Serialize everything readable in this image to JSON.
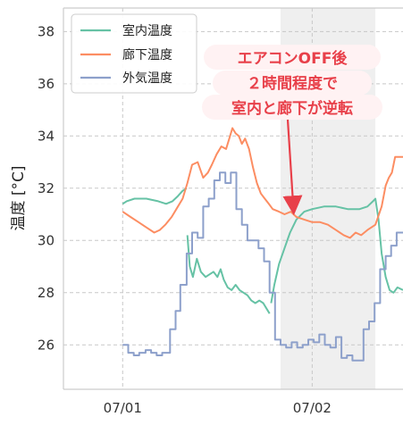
{
  "chart_data": {
    "type": "line",
    "ylabel": "温度 [°C]",
    "ylim": [
      24.3,
      38.9
    ],
    "yticks": [
      26,
      28,
      30,
      32,
      34,
      36,
      38
    ],
    "x_ticks": [
      {
        "label": "07/01",
        "value": 0
      },
      {
        "label": "07/02",
        "value": 24
      }
    ],
    "xlim": [
      -7.5,
      35.5
    ],
    "grid": true,
    "legend_position": "top-left",
    "shaded_region": {
      "x_start": 20,
      "x_end": 32,
      "color": "#efefef"
    },
    "annotation": {
      "lines": [
        "エアコンOFF後",
        "２時間程度で",
        "室内と廊下が逆転"
      ],
      "color": "#e8404a",
      "arrow_target": {
        "x": 21.6,
        "y": 31.2
      }
    },
    "series": [
      {
        "name": "室内温度",
        "color": "#66c2a5",
        "segments": [
          [
            [
              0,
              31.4
            ],
            [
              0.5,
              31.5
            ],
            [
              1.5,
              31.6
            ],
            [
              3,
              31.6
            ],
            [
              4.5,
              31.5
            ],
            [
              5.5,
              31.4
            ],
            [
              6.3,
              31.5
            ],
            [
              7,
              31.7
            ],
            [
              7.6,
              31.9
            ],
            [
              8.1,
              32.0
            ]
          ],
          [
            [
              8.2,
              30.2
            ],
            [
              8.5,
              29.0
            ],
            [
              8.9,
              28.6
            ],
            [
              9.4,
              29.3
            ],
            [
              9.9,
              28.8
            ],
            [
              10.5,
              28.6
            ],
            [
              11,
              28.7
            ],
            [
              11.5,
              28.8
            ],
            [
              12,
              28.6
            ],
            [
              12.4,
              28.9
            ],
            [
              12.8,
              28.5
            ],
            [
              13.3,
              28.2
            ],
            [
              13.8,
              28.1
            ],
            [
              14.3,
              28.3
            ],
            [
              14.8,
              28.1
            ],
            [
              15.3,
              28.0
            ],
            [
              15.8,
              27.9
            ],
            [
              16.3,
              27.7
            ],
            [
              16.8,
              27.6
            ],
            [
              17.3,
              27.7
            ],
            [
              17.8,
              27.6
            ],
            [
              18.2,
              27.4
            ],
            [
              18.6,
              27.2
            ]
          ],
          [
            [
              18.8,
              27.6
            ],
            [
              19.2,
              28.3
            ],
            [
              19.8,
              29.1
            ],
            [
              20.5,
              29.7
            ],
            [
              21.2,
              30.3
            ],
            [
              22,
              30.8
            ],
            [
              23,
              31.1
            ],
            [
              24,
              31.2
            ],
            [
              25.5,
              31.3
            ],
            [
              27,
              31.3
            ],
            [
              28.5,
              31.2
            ],
            [
              30,
              31.2
            ],
            [
              31,
              31.3
            ],
            [
              31.7,
              31.5
            ],
            [
              32,
              31.6
            ],
            [
              32.4,
              30.8
            ],
            [
              32.8,
              29.5
            ],
            [
              33.3,
              28.6
            ],
            [
              33.8,
              28.1
            ],
            [
              34.3,
              28.0
            ],
            [
              34.8,
              28.2
            ],
            [
              35.5,
              28.1
            ]
          ]
        ]
      },
      {
        "name": "廊下温度",
        "color": "#fc8d62",
        "segments": [
          [
            [
              0,
              31.1
            ],
            [
              1,
              30.9
            ],
            [
              2,
              30.7
            ],
            [
              3,
              30.5
            ],
            [
              4,
              30.3
            ],
            [
              4.7,
              30.4
            ],
            [
              5.4,
              30.6
            ],
            [
              6.2,
              30.9
            ],
            [
              7,
              31.3
            ],
            [
              7.6,
              31.6
            ],
            [
              8.2,
              32.2
            ],
            [
              8.8,
              32.9
            ],
            [
              9.5,
              33.0
            ],
            [
              10.2,
              32.4
            ],
            [
              10.8,
              32.6
            ],
            [
              11.3,
              32.9
            ],
            [
              11.9,
              33.3
            ],
            [
              12.5,
              33.6
            ],
            [
              13.1,
              33.5
            ],
            [
              13.5,
              33.9
            ],
            [
              13.9,
              34.3
            ],
            [
              14.3,
              34.1
            ],
            [
              14.7,
              34.0
            ],
            [
              15.1,
              33.7
            ],
            [
              15.5,
              33.9
            ],
            [
              16,
              33.5
            ],
            [
              16.5,
              32.8
            ],
            [
              17,
              32.2
            ],
            [
              17.5,
              31.8
            ],
            [
              18,
              31.6
            ],
            [
              18.5,
              31.4
            ],
            [
              19,
              31.2
            ],
            [
              19.8,
              31.1
            ],
            [
              20.5,
              31.0
            ],
            [
              21.3,
              31.1
            ],
            [
              22,
              30.9
            ],
            [
              23,
              30.8
            ],
            [
              24,
              30.7
            ],
            [
              25,
              30.7
            ],
            [
              26,
              30.6
            ],
            [
              27,
              30.4
            ],
            [
              28,
              30.2
            ],
            [
              28.8,
              30.1
            ],
            [
              29.5,
              30.3
            ],
            [
              30.2,
              30.2
            ],
            [
              31,
              30.4
            ],
            [
              32,
              30.6
            ],
            [
              32.8,
              31.3
            ],
            [
              33.3,
              32.1
            ],
            [
              33.7,
              32.4
            ],
            [
              34.1,
              32.6
            ],
            [
              34.5,
              33.2
            ],
            [
              35,
              33.2
            ],
            [
              35.5,
              33.2
            ]
          ]
        ]
      },
      {
        "name": "外気温度",
        "color": "#8da0cb",
        "step": true,
        "segments": [
          [
            [
              0,
              26.0
            ],
            [
              0.7,
              25.7
            ],
            [
              1.4,
              25.6
            ],
            [
              2.1,
              25.7
            ],
            [
              2.9,
              25.8
            ],
            [
              3.6,
              25.7
            ],
            [
              4.3,
              25.6
            ],
            [
              5,
              25.7
            ],
            [
              6,
              26.6
            ],
            [
              6.7,
              27.3
            ],
            [
              7.3,
              28.3
            ],
            [
              8.1,
              29.5
            ],
            [
              8.8,
              30.3
            ],
            [
              9.5,
              30.1
            ],
            [
              10.2,
              31.3
            ],
            [
              10.9,
              31.6
            ],
            [
              11.6,
              32.3
            ],
            [
              12.3,
              32.6
            ],
            [
              13,
              32.2
            ],
            [
              13.7,
              32.6
            ],
            [
              14.4,
              31.2
            ],
            [
              15.1,
              30.6
            ],
            [
              15.8,
              30.0
            ],
            [
              16.5,
              30.0
            ],
            [
              17.2,
              29.7
            ],
            [
              17.9,
              29.2
            ],
            [
              18.6,
              28.0
            ],
            [
              19.3,
              26.2
            ],
            [
              20,
              26.0
            ],
            [
              20.7,
              25.9
            ],
            [
              21.4,
              26.1
            ],
            [
              22.1,
              25.9
            ],
            [
              22.8,
              26.0
            ],
            [
              23.5,
              26.2
            ],
            [
              24.2,
              26.1
            ],
            [
              24.9,
              26.4
            ],
            [
              25.6,
              26.0
            ],
            [
              26.3,
              25.9
            ],
            [
              27,
              26.3
            ],
            [
              27.7,
              25.5
            ],
            [
              28.4,
              25.6
            ],
            [
              29.1,
              25.4
            ],
            [
              29.8,
              25.4
            ],
            [
              30.5,
              26.6
            ],
            [
              31.2,
              26.9
            ],
            [
              31.9,
              27.6
            ],
            [
              32.6,
              28.9
            ],
            [
              33.3,
              29.4
            ],
            [
              34,
              29.8
            ],
            [
              34.7,
              30.3
            ],
            [
              35.5,
              30.3
            ]
          ]
        ]
      }
    ]
  }
}
